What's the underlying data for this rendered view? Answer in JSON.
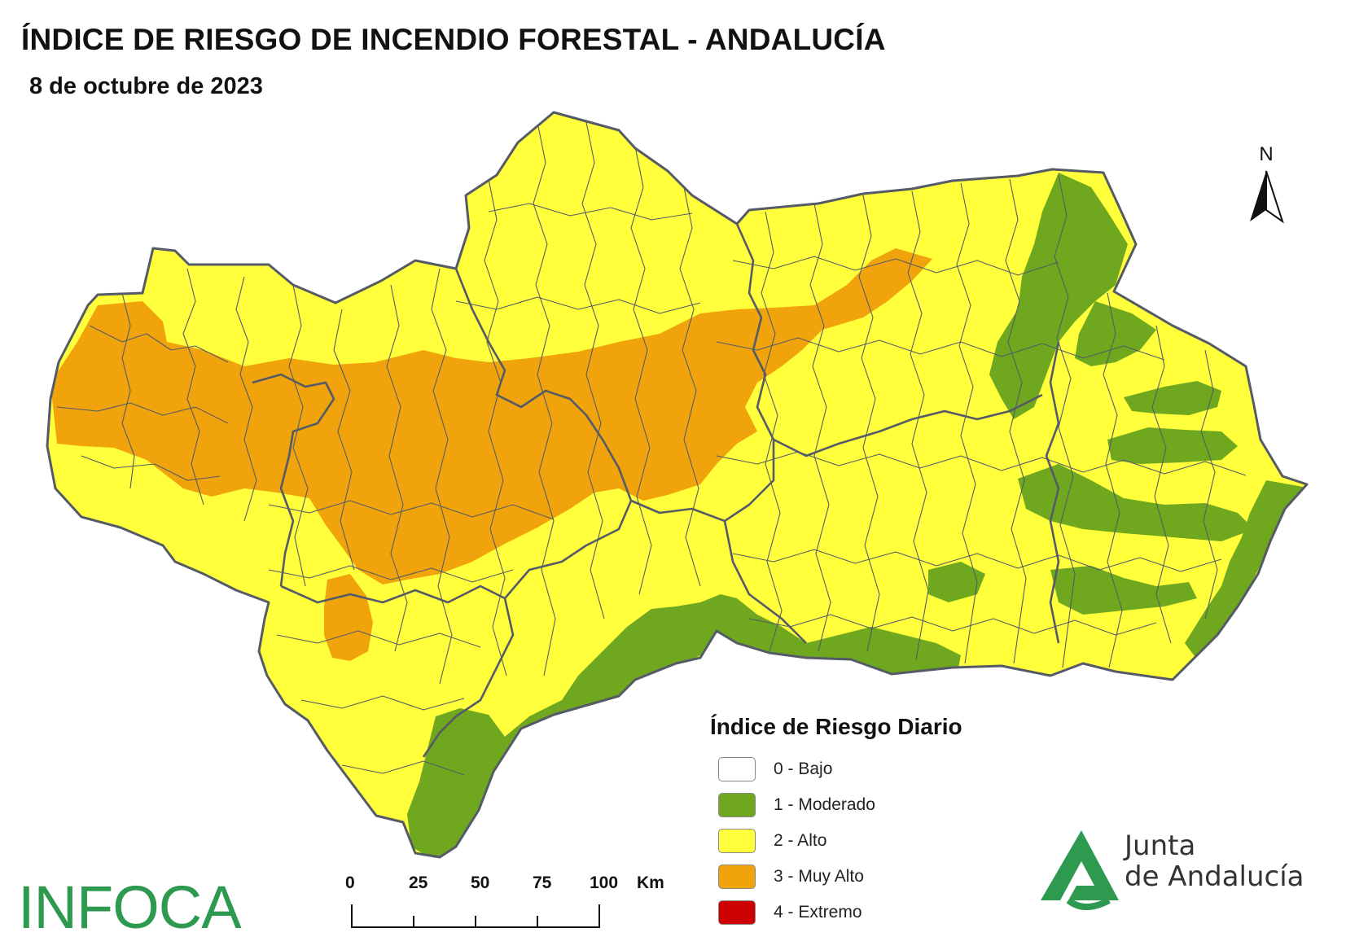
{
  "header": {
    "title": "ÍNDICE DE RIESGO DE INCENDIO FORESTAL - ANDALUCÍA",
    "date": "8 de octubre de 2023"
  },
  "north_arrow": {
    "label": "N"
  },
  "legend": {
    "title": "Índice de Riesgo Diario",
    "items": [
      {
        "label": "0 - Bajo",
        "color": "#ffffff"
      },
      {
        "label": "1 - Moderado",
        "color": "#6fa81f"
      },
      {
        "label": "2 - Alto",
        "color": "#ffff3c"
      },
      {
        "label": "3 - Muy Alto",
        "color": "#f0a30a"
      },
      {
        "label": "4 - Extremo",
        "color": "#cc0000"
      }
    ]
  },
  "scale_bar": {
    "ticks": [
      "0",
      "25",
      "50",
      "75",
      "100"
    ],
    "unit": "Km"
  },
  "logos": {
    "infoca": "INFOCA",
    "junta_line1": "Junta",
    "junta_line2": "de Andalucía"
  },
  "colors": {
    "boundary": "#555b66",
    "alto": "#ffff3c",
    "moderado": "#6fa81f",
    "muy_alto": "#f0a30a",
    "junta_green": "#2d9a4f"
  }
}
